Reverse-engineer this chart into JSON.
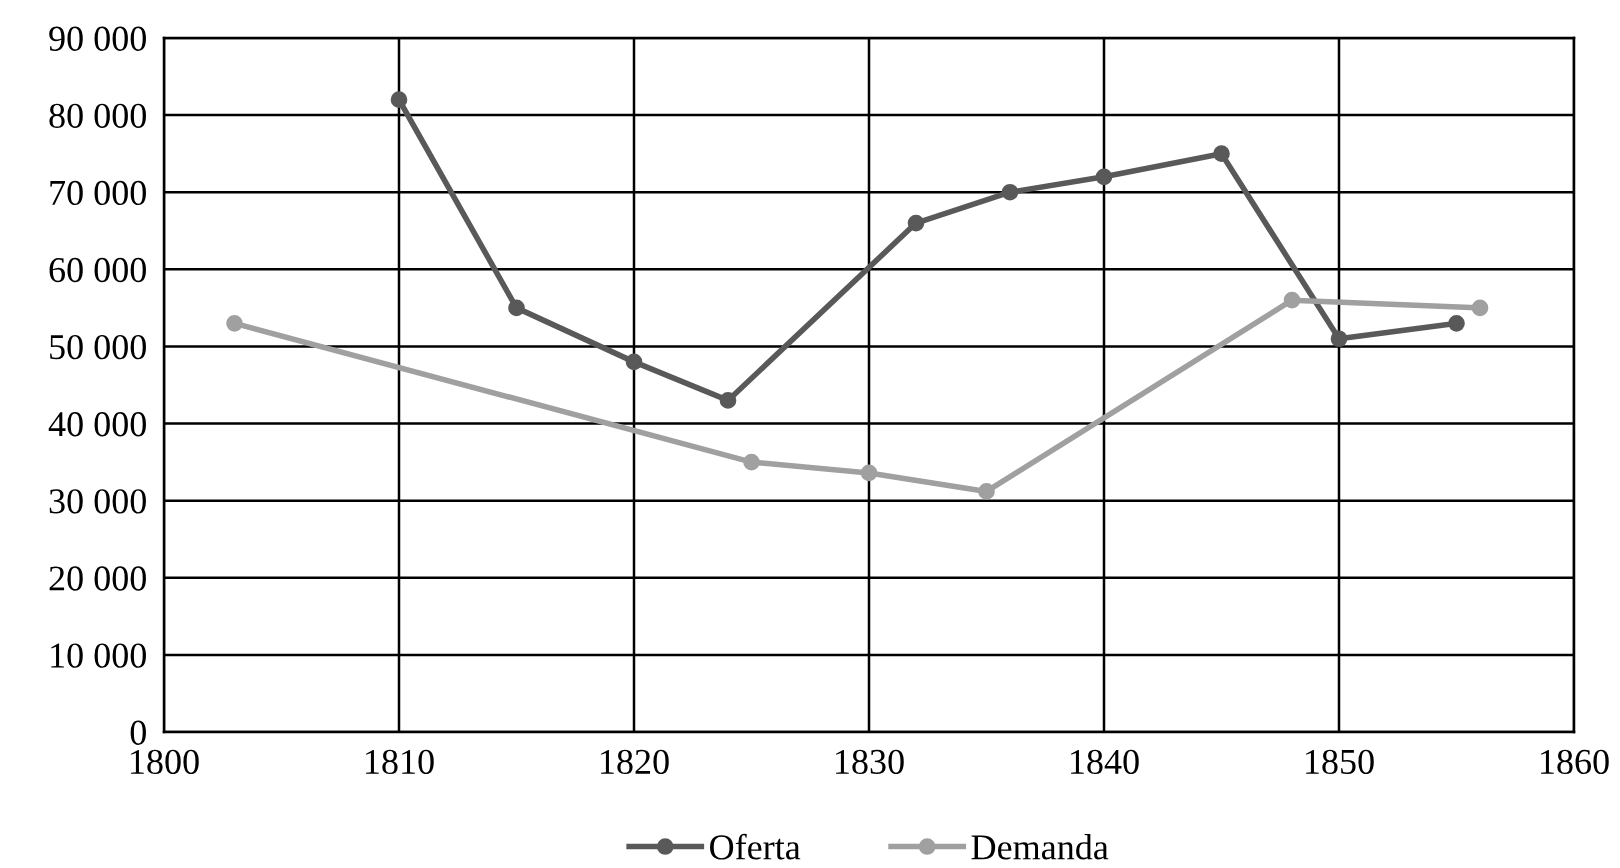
{
  "chart_data": {
    "type": "line",
    "series": [
      {
        "name": "Oferta",
        "color": "#595959",
        "x": [
          1810,
          1815,
          1820,
          1824,
          1832,
          1836,
          1840,
          1845,
          1850,
          1855
        ],
        "values": [
          82000,
          55000,
          48000,
          43000,
          66000,
          70000,
          72000,
          75000,
          51000,
          53000
        ]
      },
      {
        "name": "Demanda",
        "color": "#a0a0a0",
        "x": [
          1803,
          1825,
          1830,
          1835,
          1848,
          1856
        ],
        "values": [
          53000,
          35000,
          33600,
          31200,
          56000,
          55000
        ]
      }
    ],
    "xlim": [
      1800,
      1860
    ],
    "xticks": [
      1800,
      1810,
      1820,
      1830,
      1840,
      1850,
      1860
    ],
    "ylim": [
      0,
      90000
    ],
    "yticks": [
      {
        "value": 0,
        "label": "0"
      },
      {
        "value": 10000,
        "label": "10 000"
      },
      {
        "value": 20000,
        "label": "20 000"
      },
      {
        "value": 30000,
        "label": "30 000"
      },
      {
        "value": 40000,
        "label": "40 000"
      },
      {
        "value": 50000,
        "label": "50 000"
      },
      {
        "value": 60000,
        "label": "60 000"
      },
      {
        "value": 70000,
        "label": "70 000"
      },
      {
        "value": 80000,
        "label": "80 000"
      },
      {
        "value": 90000,
        "label": "90 000"
      }
    ],
    "grid": true,
    "legend": "bottom",
    "marker": "circle",
    "line_style": "solid"
  }
}
